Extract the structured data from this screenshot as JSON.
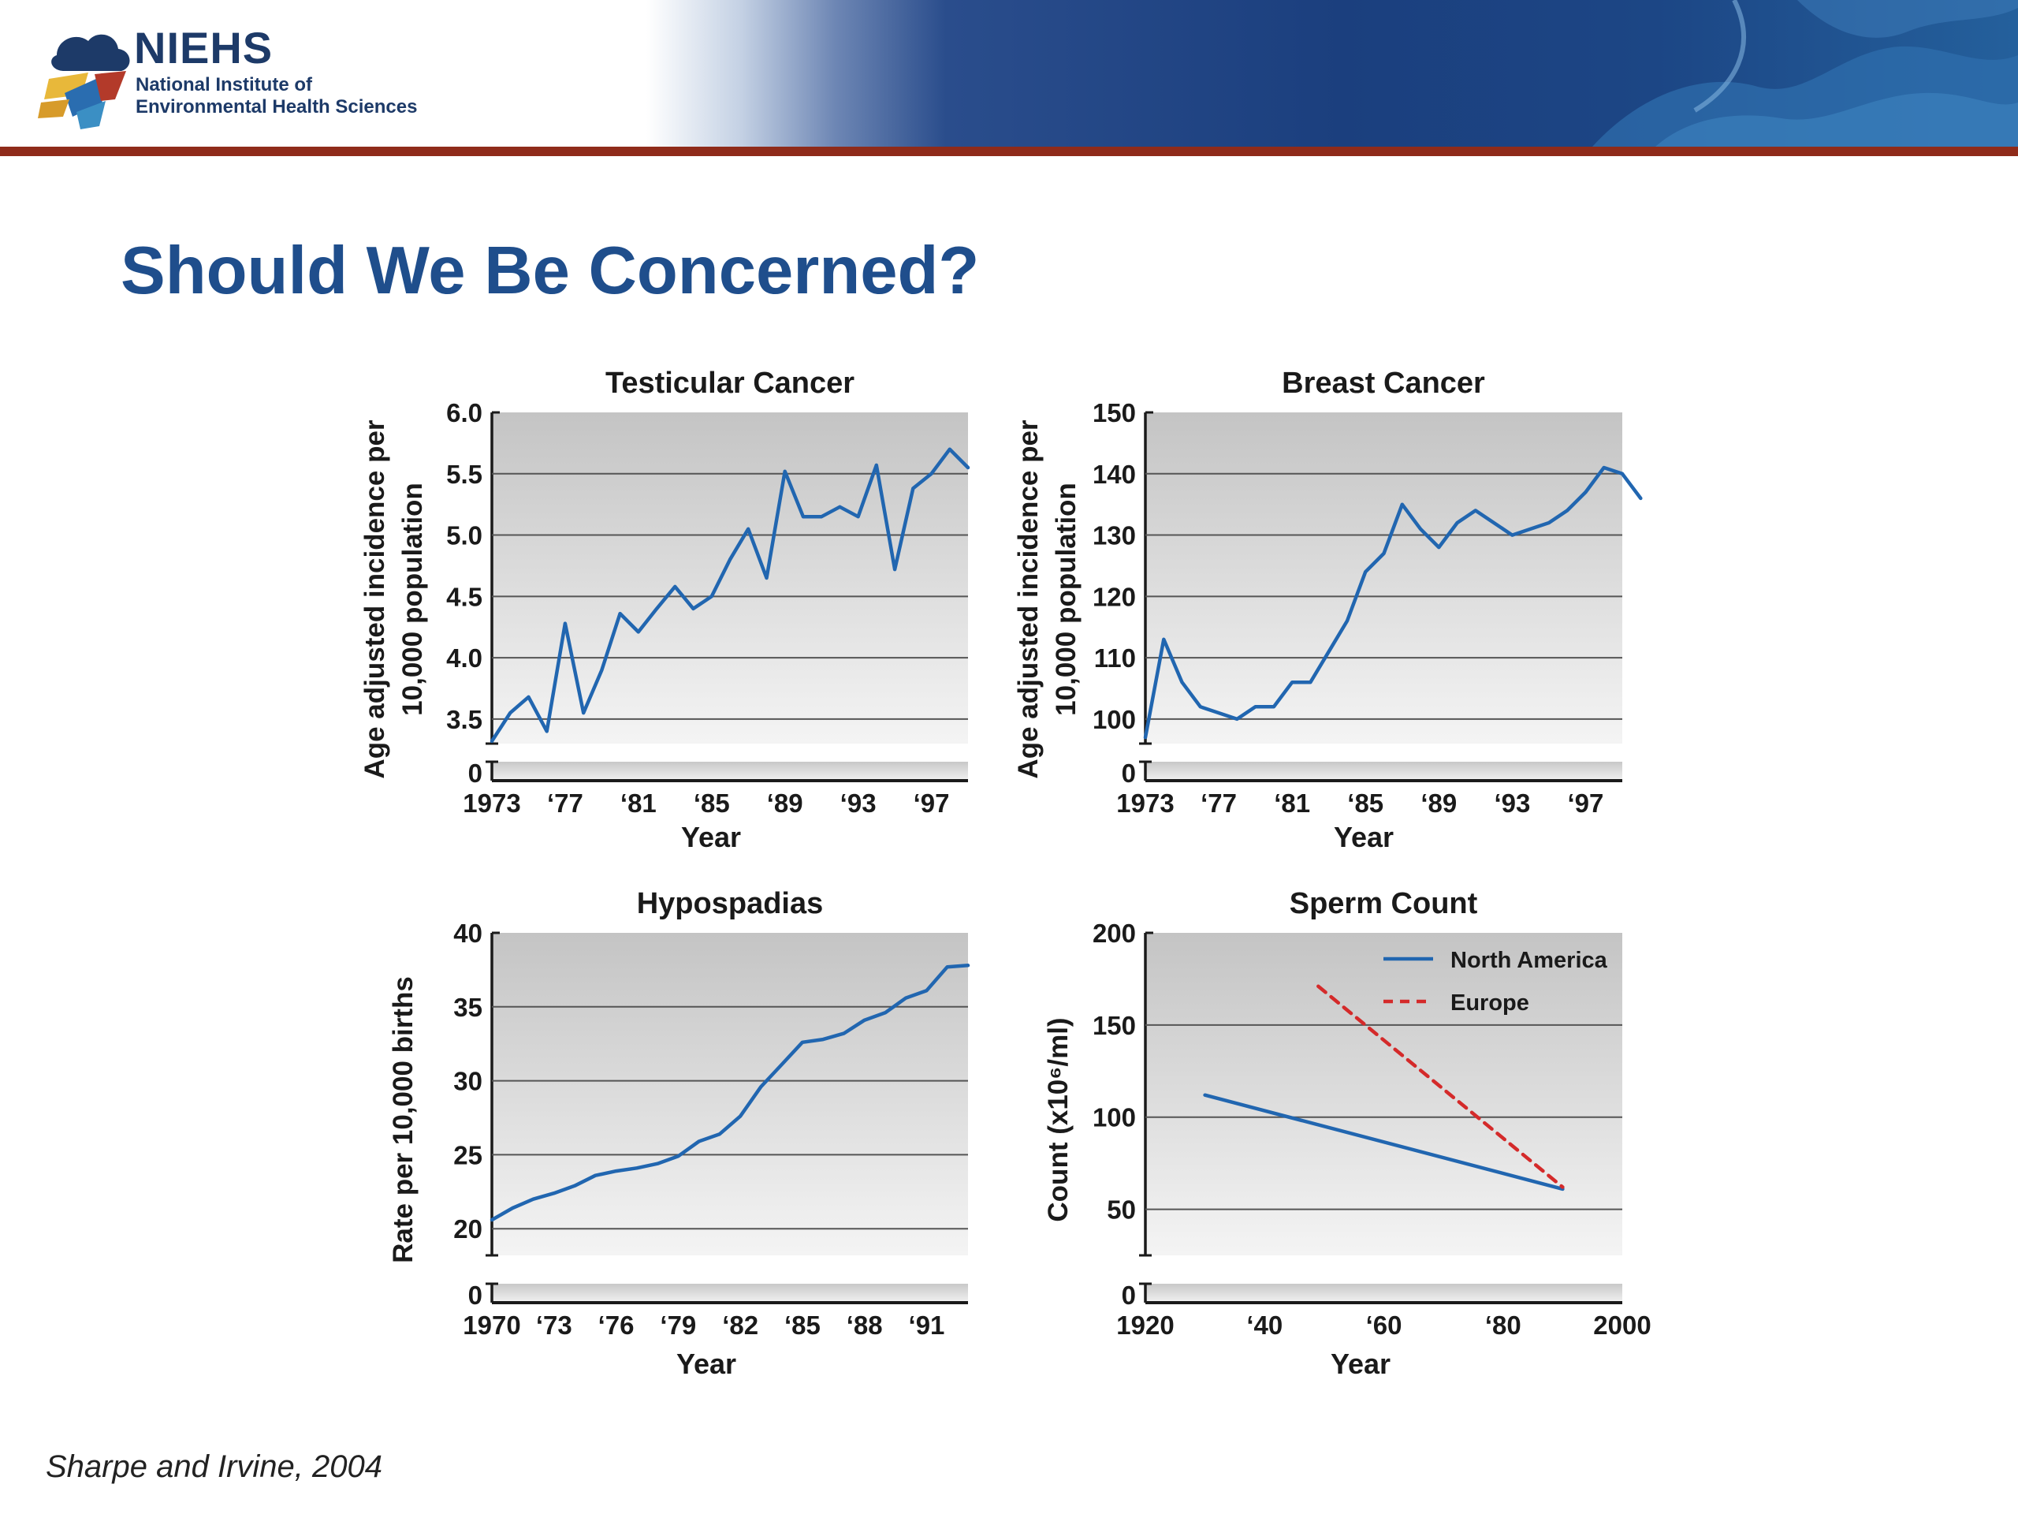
{
  "header": {
    "logo_acronym": "NIEHS",
    "logo_line1": "National Institute of",
    "logo_line2": "Environmental Health Sciences"
  },
  "page_title": "Should We Be Concerned?",
  "source_note": "Sharpe and Irvine, 2004",
  "colors": {
    "title": "#1f4e8c",
    "line_blue": "#2166b0",
    "line_red": "#d42a2a",
    "header_rule": "#8f2b1a"
  },
  "chart_data": [
    {
      "type": "line",
      "title": "Testicular Cancer",
      "xlabel": "Year",
      "ylabel": [
        "Age adjusted incidence per",
        "10,000 population"
      ],
      "y_axis_break": true,
      "xlim": [
        1973,
        1999
      ],
      "ylim": [
        3.3,
        6.0
      ],
      "xticks": [
        1973,
        1977,
        1981,
        1985,
        1989,
        1993,
        1997
      ],
      "xtick_labels": [
        "1973",
        "‘77",
        "‘81",
        "‘85",
        "‘89",
        "‘93",
        "‘97"
      ],
      "yticks": [
        3.5,
        4.0,
        4.5,
        5.0,
        5.5,
        6.0
      ],
      "ytick_labels": [
        "3.5",
        "4.0",
        "4.5",
        "5.0",
        "5.5",
        "6.0"
      ],
      "zero_label": "0",
      "series": [
        {
          "values": [
            [
              1973,
              3.32
            ],
            [
              1974,
              3.55
            ],
            [
              1975,
              3.68
            ],
            [
              1976,
              3.4
            ],
            [
              1977,
              4.28
            ],
            [
              1978,
              3.55
            ],
            [
              1979,
              3.9
            ],
            [
              1980,
              4.36
            ],
            [
              1981,
              4.21
            ],
            [
              1982,
              4.4
            ],
            [
              1983,
              4.58
            ],
            [
              1984,
              4.4
            ],
            [
              1985,
              4.5
            ],
            [
              1986,
              4.8
            ],
            [
              1987,
              5.05
            ],
            [
              1988,
              4.65
            ],
            [
              1989,
              5.52
            ],
            [
              1990,
              5.15
            ],
            [
              1991,
              5.15
            ],
            [
              1992,
              5.23
            ],
            [
              1993,
              5.15
            ],
            [
              1994,
              5.57
            ],
            [
              1995,
              4.72
            ],
            [
              1996,
              5.38
            ],
            [
              1997,
              5.5
            ],
            [
              1998,
              5.7
            ],
            [
              1999,
              5.55
            ]
          ]
        }
      ]
    },
    {
      "type": "line",
      "title": "Breast Cancer",
      "xlabel": "Year",
      "ylabel": [
        "Age adjusted incidence per",
        "10,000 population"
      ],
      "y_axis_break": true,
      "xlim": [
        1973,
        1999
      ],
      "ylim": [
        96,
        150
      ],
      "xticks": [
        1973,
        1977,
        1981,
        1985,
        1989,
        1993,
        1997
      ],
      "xtick_labels": [
        "1973",
        "‘77",
        "‘81",
        "‘85",
        "‘89",
        "‘93",
        "‘97"
      ],
      "yticks": [
        100,
        110,
        120,
        130,
        140,
        150
      ],
      "ytick_labels": [
        "100",
        "110",
        "120",
        "130",
        "140",
        "150"
      ],
      "zero_label": "0",
      "series": [
        {
          "values": [
            [
              1973,
              97
            ],
            [
              1974,
              113
            ],
            [
              1975,
              106
            ],
            [
              1976,
              102
            ],
            [
              1977,
              101
            ],
            [
              1978,
              100
            ],
            [
              1979,
              102
            ],
            [
              1980,
              102
            ],
            [
              1981,
              106
            ],
            [
              1982,
              106
            ],
            [
              1983,
              111
            ],
            [
              1984,
              116
            ],
            [
              1985,
              124
            ],
            [
              1986,
              127
            ],
            [
              1987,
              135
            ],
            [
              1988,
              131
            ],
            [
              1989,
              128
            ],
            [
              1990,
              132
            ],
            [
              1991,
              134
            ],
            [
              1992,
              132
            ],
            [
              1993,
              130
            ],
            [
              1994,
              131
            ],
            [
              1995,
              132
            ],
            [
              1996,
              134
            ],
            [
              1997,
              137
            ],
            [
              1998,
              141
            ],
            [
              1999,
              140
            ],
            [
              2000,
              136
            ]
          ]
        }
      ]
    },
    {
      "type": "line",
      "title": "Hypospadias",
      "xlabel": "Year",
      "ylabel": [
        "Rate per 10,000 births"
      ],
      "y_axis_break": true,
      "xlim": [
        1970,
        1993
      ],
      "ylim": [
        18.2,
        40
      ],
      "xticks": [
        1970,
        1973,
        1976,
        1979,
        1982,
        1985,
        1988,
        1991
      ],
      "xtick_labels": [
        "1970",
        "‘73",
        "‘76",
        "‘79",
        "‘82",
        "‘85",
        "‘88",
        "‘91"
      ],
      "yticks": [
        20,
        25,
        30,
        35,
        40
      ],
      "ytick_labels": [
        "20",
        "25",
        "30",
        "35",
        "40"
      ],
      "zero_label": "0",
      "series": [
        {
          "values": [
            [
              1970,
              20.6
            ],
            [
              1971,
              21.4
            ],
            [
              1972,
              22.0
            ],
            [
              1973,
              22.4
            ],
            [
              1974,
              22.9
            ],
            [
              1975,
              23.6
            ],
            [
              1976,
              23.9
            ],
            [
              1977,
              24.1
            ],
            [
              1978,
              24.4
            ],
            [
              1979,
              24.9
            ],
            [
              1980,
              25.9
            ],
            [
              1981,
              26.4
            ],
            [
              1982,
              27.6
            ],
            [
              1983,
              29.6
            ],
            [
              1984,
              31.1
            ],
            [
              1985,
              32.6
            ],
            [
              1986,
              32.8
            ],
            [
              1987,
              33.2
            ],
            [
              1988,
              34.1
            ],
            [
              1989,
              34.6
            ],
            [
              1990,
              35.6
            ],
            [
              1991,
              36.1
            ],
            [
              1992,
              37.7
            ],
            [
              1993,
              37.8
            ]
          ]
        }
      ]
    },
    {
      "type": "line",
      "title": "Sperm Count",
      "xlabel": "Year",
      "ylabel": [
        "Count (x10⁶/ml)"
      ],
      "y_axis_break": true,
      "xlim": [
        1920,
        2000
      ],
      "ylim": [
        25,
        200
      ],
      "xticks": [
        1920,
        1940,
        1960,
        1980,
        2000
      ],
      "xtick_labels": [
        "1920",
        "‘40",
        "‘60",
        "‘80",
        "2000"
      ],
      "yticks": [
        50,
        100,
        150,
        200
      ],
      "ytick_labels": [
        "50",
        "100",
        "150",
        "200"
      ],
      "zero_label": "0",
      "legend": "top-right",
      "series": [
        {
          "name": "North America",
          "style": "solid",
          "color": "#2166b0",
          "values": [
            [
              1930,
              112
            ],
            [
              1990,
              61
            ]
          ]
        },
        {
          "name": "Europe",
          "style": "dashed",
          "color": "#d42a2a",
          "values": [
            [
              1949,
              171
            ],
            [
              1990,
              62
            ]
          ]
        }
      ]
    }
  ]
}
